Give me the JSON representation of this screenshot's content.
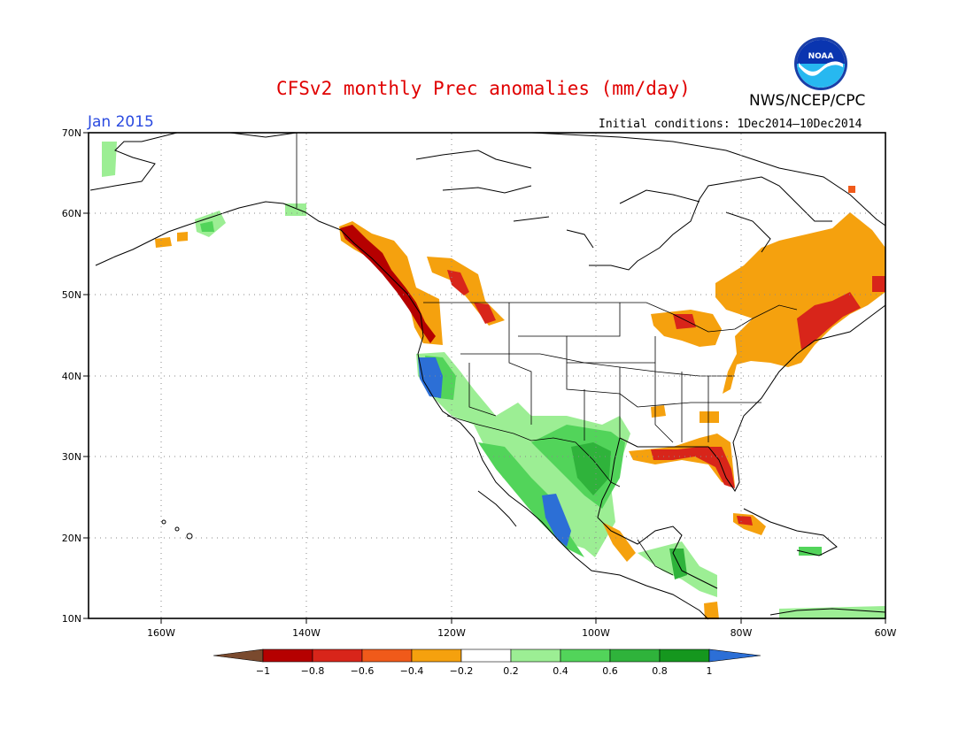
{
  "header": {
    "title": "CFSv2 monthly Prec anomalies (mm/day)",
    "period": "Jan 2015",
    "initial_conditions": "Initial conditions: 1Dec2014—10Dec2014",
    "agency": "NWS/NCEP/CPC",
    "logo_text": "NOAA"
  },
  "map": {
    "region": "North America",
    "lat_ticks": [
      "70N",
      "60N",
      "50N",
      "40N",
      "30N",
      "20N",
      "10N"
    ],
    "lon_ticks": [
      "160W",
      "140W",
      "120W",
      "100W",
      "80W",
      "60W"
    ],
    "grid": "dotted"
  },
  "colorbar": {
    "labels": [
      "−1",
      "−0.8",
      "−0.6",
      "−0.4",
      "−0.2",
      "0.2",
      "0.4",
      "0.6",
      "0.8",
      "1"
    ],
    "colors": {
      "lt_m1": "#7a4a2e",
      "m1_m08": "#b50000",
      "m08_m06": "#d8251a",
      "m06_m04": "#f05a1a",
      "m04_m02": "#f5a10e",
      "m02_02": "#ffffff",
      "p02_04": "#9cee94",
      "p04_06": "#52d45a",
      "p06_08": "#2fb33b",
      "p08_1": "#15971e",
      "gt_1": "#2c6fd6"
    }
  }
}
